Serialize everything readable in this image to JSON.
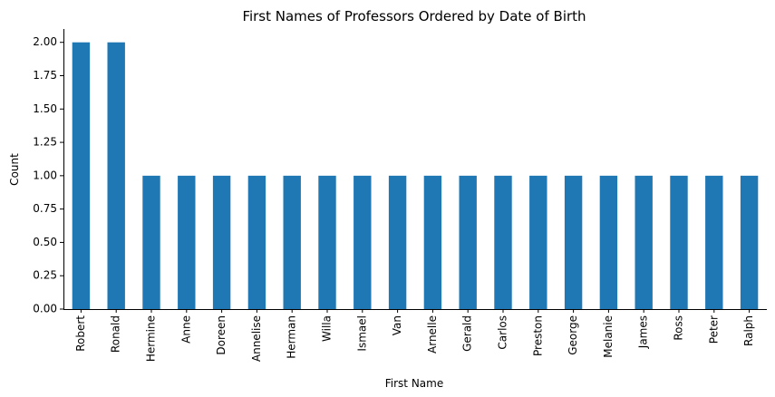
{
  "chart_data": {
    "type": "bar",
    "title": "First Names of Professors Ordered by Date of Birth",
    "xlabel": "First Name",
    "ylabel": "Count",
    "categories": [
      "Robert",
      "Ronald",
      "Hermine",
      "Anne",
      "Doreen",
      "Annelise",
      "Herman",
      "Willa",
      "Ismael",
      "Van",
      "Arnelle",
      "Gerald",
      "Carlos",
      "Preston",
      "George",
      "Melanie",
      "James",
      "Ross",
      "Peter",
      "Ralph"
    ],
    "values": [
      2,
      2,
      1,
      1,
      1,
      1,
      1,
      1,
      1,
      1,
      1,
      1,
      1,
      1,
      1,
      1,
      1,
      1,
      1,
      1
    ],
    "ylim": [
      0,
      2.1
    ],
    "yticks": [
      "0.00",
      "0.25",
      "0.50",
      "0.75",
      "1.00",
      "1.25",
      "1.50",
      "1.75",
      "2.00"
    ],
    "grid": false,
    "bar_color": "#1f77b4"
  }
}
